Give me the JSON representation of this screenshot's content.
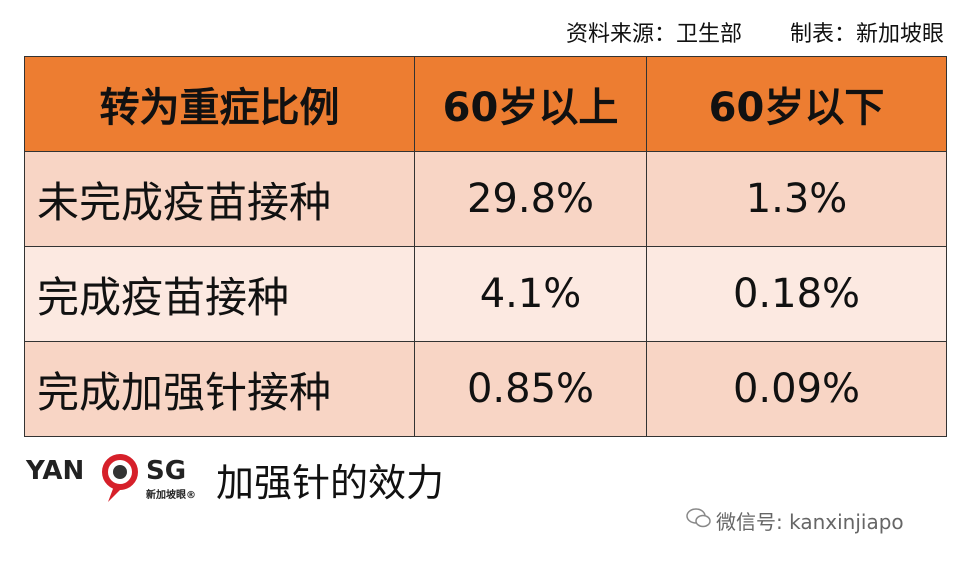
{
  "header": {
    "source": "资料来源：卫生部",
    "maker": "制表：新加坡眼"
  },
  "table": {
    "columns": [
      "转为重症比例",
      "60岁以上",
      "60岁以下"
    ],
    "rows": [
      [
        "未完成疫苗接种",
        "29.8%",
        "1.3%"
      ],
      [
        "完成疫苗接种",
        "4.1%",
        "0.18%"
      ],
      [
        "完成加强针接种",
        "0.85%",
        "0.09%"
      ]
    ]
  },
  "logo": {
    "left": "YAN",
    "right": "SG",
    "sub": "新加坡眼®"
  },
  "caption": "加强针的效力",
  "watermark": "微信号: kanxinjiapo"
}
